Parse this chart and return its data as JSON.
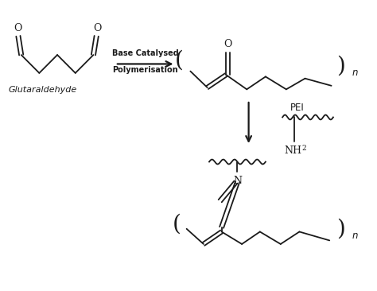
{
  "bg_color": "#ffffff",
  "line_color": "#1a1a1a",
  "text_color": "#1a1a1a",
  "figsize": [
    4.74,
    3.66
  ],
  "dpi": 100,
  "labels": {
    "glutaraldehyde": "Glutaraldehyde",
    "base_catalysed": "Base Catalysed",
    "polymerisation": "Polymerisation",
    "pei": "PEI",
    "O_top": "O",
    "O_right": "O",
    "O_bottom": "O",
    "N_label": "N",
    "NH2_label": "NH",
    "n_top": "n",
    "n_bottom": "n"
  }
}
